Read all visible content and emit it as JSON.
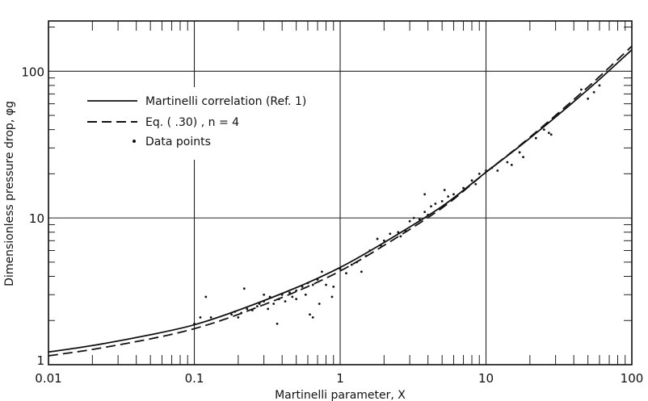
{
  "chart_data": {
    "type": "line",
    "title": "",
    "xlabel": "Martinelli parameter, X",
    "ylabel": "Dimensionless pressure drop, φg",
    "xscale": "log",
    "yscale": "log",
    "xlim": [
      0.01,
      100
    ],
    "ylim": [
      1,
      220
    ],
    "grid": true,
    "x_ticks": [
      "0.01",
      "0.1",
      "1",
      "10",
      "100"
    ],
    "y_ticks": [
      "1",
      "10",
      "100"
    ],
    "legend": {
      "placement": "upper-left",
      "entries": [
        {
          "label": "Martinelli correlation (Ref. 1)",
          "style": "solid"
        },
        {
          "label": "Eq. (  .30) ,  n = 4",
          "style": "dashed"
        },
        {
          "label": "Data points",
          "style": "dot"
        }
      ]
    },
    "series": [
      {
        "name": "Martinelli correlation (Ref. 1)",
        "style": "solid",
        "points": [
          [
            0.01,
            1.22
          ],
          [
            0.02,
            1.35
          ],
          [
            0.05,
            1.6
          ],
          [
            0.1,
            1.87
          ],
          [
            0.2,
            2.35
          ],
          [
            0.5,
            3.35
          ],
          [
            1,
            4.6
          ],
          [
            2,
            6.8
          ],
          [
            5,
            12
          ],
          [
            10,
            20.5
          ],
          [
            20,
            35
          ],
          [
            50,
            75
          ],
          [
            100,
            140
          ]
        ]
      },
      {
        "name": "Eq. (  .30) ,  n = 4",
        "style": "dashed",
        "points": [
          [
            0.01,
            1.15
          ],
          [
            0.02,
            1.27
          ],
          [
            0.05,
            1.5
          ],
          [
            0.1,
            1.76
          ],
          [
            0.2,
            2.2
          ],
          [
            0.5,
            3.15
          ],
          [
            1,
            4.35
          ],
          [
            2,
            6.5
          ],
          [
            5,
            11.7
          ],
          [
            10,
            20.5
          ],
          [
            20,
            35.5
          ],
          [
            50,
            78
          ],
          [
            100,
            148
          ]
        ]
      },
      {
        "name": "Data points",
        "style": "dot",
        "points": [
          [
            0.1,
            1.9
          ],
          [
            0.11,
            2.1
          ],
          [
            0.12,
            2.9
          ],
          [
            0.13,
            2.1
          ],
          [
            0.18,
            2.2
          ],
          [
            0.19,
            2.3
          ],
          [
            0.2,
            2.1
          ],
          [
            0.21,
            2.25
          ],
          [
            0.22,
            3.3
          ],
          [
            0.23,
            2.4
          ],
          [
            0.25,
            2.35
          ],
          [
            0.27,
            2.5
          ],
          [
            0.28,
            2.6
          ],
          [
            0.3,
            2.7
          ],
          [
            0.3,
            3.0
          ],
          [
            0.32,
            2.4
          ],
          [
            0.33,
            2.9
          ],
          [
            0.35,
            2.6
          ],
          [
            0.37,
            1.9
          ],
          [
            0.38,
            2.8
          ],
          [
            0.4,
            3.0
          ],
          [
            0.42,
            2.7
          ],
          [
            0.45,
            3.1
          ],
          [
            0.47,
            2.9
          ],
          [
            0.5,
            3.2
          ],
          [
            0.5,
            2.8
          ],
          [
            0.55,
            3.4
          ],
          [
            0.58,
            3.0
          ],
          [
            0.6,
            3.6
          ],
          [
            0.62,
            2.2
          ],
          [
            0.65,
            2.1
          ],
          [
            0.65,
            3.5
          ],
          [
            0.7,
            3.8
          ],
          [
            0.72,
            2.6
          ],
          [
            0.75,
            4.3
          ],
          [
            0.8,
            3.5
          ],
          [
            0.88,
            2.9
          ],
          [
            0.9,
            3.4
          ],
          [
            1.0,
            4.5
          ],
          [
            1.1,
            4.2
          ],
          [
            1.2,
            4.8
          ],
          [
            1.3,
            5.0
          ],
          [
            1.4,
            4.3
          ],
          [
            1.5,
            5.5
          ],
          [
            1.6,
            6.0
          ],
          [
            1.8,
            7.2
          ],
          [
            1.9,
            6.5
          ],
          [
            2.0,
            7.0
          ],
          [
            2.2,
            7.8
          ],
          [
            2.5,
            8.0
          ],
          [
            2.6,
            7.5
          ],
          [
            2.8,
            8.2
          ],
          [
            3.0,
            9.5
          ],
          [
            3.2,
            10
          ],
          [
            3.5,
            9.8
          ],
          [
            3.8,
            11
          ],
          [
            3.8,
            14.5
          ],
          [
            4.0,
            10.5
          ],
          [
            4.2,
            12
          ],
          [
            4.5,
            12.5
          ],
          [
            5.0,
            13
          ],
          [
            5.2,
            15.5
          ],
          [
            5.5,
            14
          ],
          [
            6,
            14.5
          ],
          [
            7,
            16
          ],
          [
            8,
            18
          ],
          [
            8.5,
            17
          ],
          [
            9,
            20
          ],
          [
            10,
            21
          ],
          [
            11,
            22
          ],
          [
            12,
            21
          ],
          [
            14,
            24
          ],
          [
            15,
            23
          ],
          [
            17,
            28
          ],
          [
            18,
            26
          ],
          [
            22,
            35
          ],
          [
            25,
            40
          ],
          [
            27,
            38
          ],
          [
            28,
            37
          ],
          [
            45,
            75
          ],
          [
            50,
            65
          ],
          [
            55,
            72
          ],
          [
            60,
            80
          ]
        ]
      }
    ]
  }
}
